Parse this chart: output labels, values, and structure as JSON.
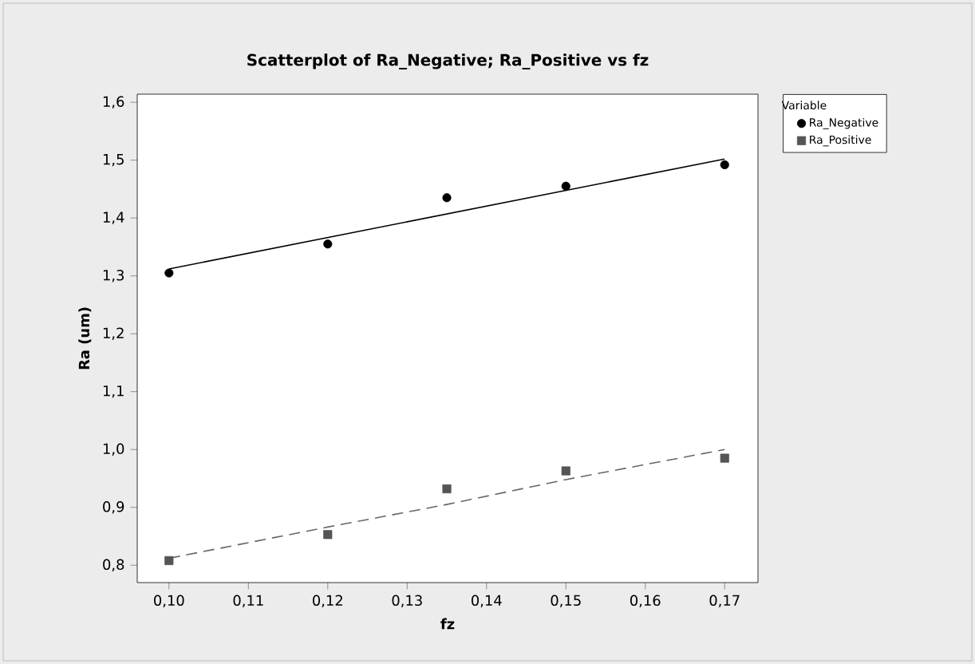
{
  "chart_data": {
    "type": "scatter",
    "title": "Scatterplot of Ra_Negative; Ra_Positive vs fz",
    "xlabel": "fz",
    "ylabel": "Ra (um)",
    "legend_title": "Variable",
    "legend": "right",
    "xlim": [
      0.096,
      0.1742
    ],
    "ylim": [
      0.77,
      1.614
    ],
    "xticks": [
      {
        "value": 0.1,
        "label": "0,10"
      },
      {
        "value": 0.11,
        "label": "0,11"
      },
      {
        "value": 0.12,
        "label": "0,12"
      },
      {
        "value": 0.13,
        "label": "0,13"
      },
      {
        "value": 0.14,
        "label": "0,14"
      },
      {
        "value": 0.15,
        "label": "0,15"
      },
      {
        "value": 0.16,
        "label": "0,16"
      },
      {
        "value": 0.17,
        "label": "0,17"
      }
    ],
    "yticks": [
      {
        "value": 0.8,
        "label": "0,8"
      },
      {
        "value": 0.9,
        "label": "0,9"
      },
      {
        "value": 1.0,
        "label": "1,0"
      },
      {
        "value": 1.1,
        "label": "1,1"
      },
      {
        "value": 1.2,
        "label": "1,2"
      },
      {
        "value": 1.3,
        "label": "1,3"
      },
      {
        "value": 1.4,
        "label": "1,4"
      },
      {
        "value": 1.5,
        "label": "1,5"
      },
      {
        "value": 1.6,
        "label": "1,6"
      }
    ],
    "x": [
      0.1,
      0.12,
      0.135,
      0.15,
      0.17
    ],
    "series": [
      {
        "name": "Ra_Negative",
        "color": "#000000",
        "marker": "circle",
        "values": [
          1.305,
          1.355,
          1.435,
          1.455,
          1.492
        ]
      },
      {
        "name": "Ra_Positive",
        "color": "#555555",
        "marker": "square",
        "values": [
          0.808,
          0.853,
          0.932,
          0.963,
          0.985
        ]
      },
      {
        "type": "line",
        "color": "#000000",
        "line_style": "solid",
        "marker": "none",
        "x": [
          0.1,
          0.17
        ],
        "values": [
          1.312,
          1.502
        ]
      },
      {
        "type": "line",
        "color": "#666666",
        "line_style": "dashed",
        "marker": "none",
        "x": [
          0.1,
          0.12,
          0.135,
          0.15,
          0.17
        ],
        "values": [
          0.812,
          0.866,
          0.905,
          0.948,
          1.0
        ]
      }
    ]
  }
}
